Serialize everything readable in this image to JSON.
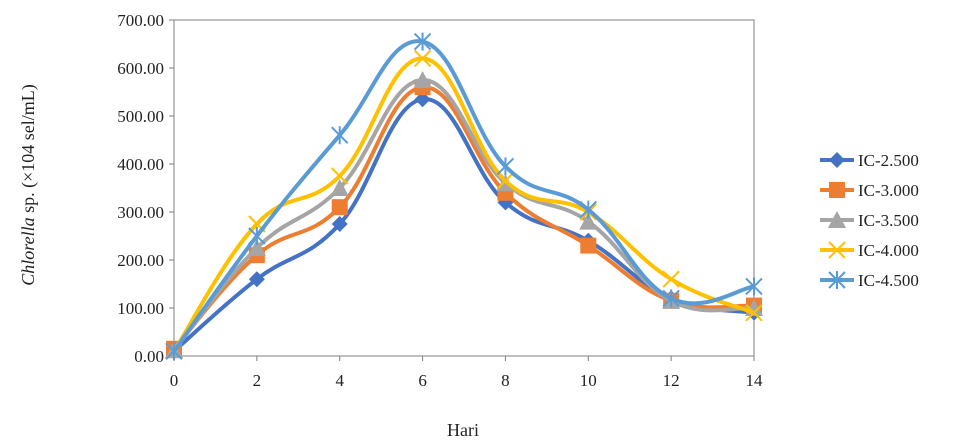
{
  "chart_data": {
    "type": "line",
    "title": "",
    "xlabel": "Hari",
    "ylabel_italic": "Chlorella",
    "ylabel_rest": " sp. (×104 sel/mL)",
    "x": [
      0,
      2,
      4,
      6,
      8,
      10,
      12,
      14
    ],
    "x_ticks": [
      "0",
      "2",
      "4",
      "6",
      "8",
      "10",
      "12",
      "14"
    ],
    "y_ticks": [
      "0.00",
      "100.00",
      "200.00",
      "300.00",
      "400.00",
      "500.00",
      "600.00",
      "700.00"
    ],
    "ylim": [
      0,
      700
    ],
    "xlim": [
      0,
      14
    ],
    "grid": false,
    "legend_position": "right",
    "series": [
      {
        "name": "IC-2.500",
        "color": "#4472C4",
        "marker": "diamond",
        "values": [
          10,
          160,
          275,
          535,
          320,
          240,
          120,
          90
        ]
      },
      {
        "name": "IC-3.000",
        "color": "#ED7D31",
        "marker": "square",
        "values": [
          15,
          210,
          310,
          560,
          340,
          230,
          115,
          105
        ]
      },
      {
        "name": "IC-3.500",
        "color": "#A5A5A5",
        "marker": "triangle",
        "values": [
          12,
          225,
          350,
          575,
          360,
          280,
          115,
          100
        ]
      },
      {
        "name": "IC-4.000",
        "color": "#FFC000",
        "marker": "x",
        "values": [
          10,
          275,
          375,
          620,
          365,
          300,
          160,
          90
        ]
      },
      {
        "name": "IC-4.500",
        "color": "#5B9BD5",
        "marker": "star",
        "values": [
          10,
          250,
          460,
          655,
          395,
          305,
          120,
          145
        ]
      }
    ]
  }
}
